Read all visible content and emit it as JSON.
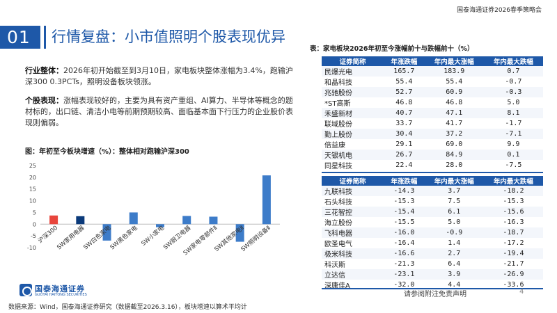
{
  "header": {
    "org": "国泰海通证券2026春季策略会"
  },
  "section": {
    "number": "01",
    "title": "行情复盘：小市值照明个股表现优异"
  },
  "text": {
    "industry_label": "行业整体：",
    "industry_body": "2026年初开始截至到3月10日，家电板块整体涨幅为3.4%，跑输沪深300 0.3PCTs，照明设备板块领涨。",
    "stock_label": "个股表现：",
    "stock_body": "涨幅表现较好的，主要为具有资产重组、AI算力、半导体等概念的题材标的，出口链、清洁小电等前期预期较高、面临基本面下行压力的企业股价表现则偏弱。"
  },
  "chart_data": {
    "type": "bar",
    "title": "图：年初至今板块增速（%）：整体相对跑输沪深300",
    "categories": [
      "沪深300",
      "SW家用电器",
      "SW白色家电",
      "SW黑色家电",
      "SW小家电",
      "SW厨卫电器",
      "SW家电零部件Ⅱ",
      "SW其他家电Ⅱ",
      "SW照明设备Ⅱ"
    ],
    "values": [
      3.7,
      3.4,
      -7.0,
      5.0,
      -1.3,
      3.5,
      3.2,
      -7.5,
      20.8
    ],
    "colors": [
      "#e8453c",
      "#0b3a7a",
      "#3d7cc9",
      "#3d7cc9",
      "#3d7cc9",
      "#3d7cc9",
      "#3d7cc9",
      "#3d7cc9",
      "#3d7cc9"
    ],
    "ylim": [
      -10,
      25
    ],
    "yticks": [
      -10,
      -5,
      0,
      5,
      10,
      15,
      20,
      25
    ],
    "xlabel": "",
    "ylabel": ""
  },
  "table": {
    "title": "表：家电板块2026年初至今涨幅前十与跌幅前十（%）",
    "headers": [
      "证券简称",
      "年涨跌幅",
      "年内最大涨幅",
      "年内最大跌幅"
    ],
    "top_rows": [
      [
        "民爆光电",
        "165.7",
        "183.9",
        "0.7"
      ],
      [
        "和晶科技",
        "55.4",
        "55.4",
        "-0.7"
      ],
      [
        "兆驰股份",
        "52.7",
        "60.9",
        "-0.3"
      ],
      [
        "*ST高斯",
        "46.8",
        "46.8",
        "5.0"
      ],
      [
        "禾盛新材",
        "40.7",
        "47.1",
        "8.1"
      ],
      [
        "联域股份",
        "33.7",
        "41.7",
        "-1.7"
      ],
      [
        "勤上股份",
        "30.4",
        "37.2",
        "-7.1"
      ],
      [
        "倍益康",
        "29.1",
        "69.0",
        "9.9"
      ],
      [
        "天银机电",
        "26.7",
        "84.9",
        "0.1"
      ],
      [
        "同星科技",
        "22.4",
        "28.0",
        "-7.5"
      ]
    ],
    "bottom_rows": [
      [
        "九联科技",
        "-14.3",
        "3.7",
        "-18.2"
      ],
      [
        "石头科技",
        "-15.3",
        "7.5",
        "-15.3"
      ],
      [
        "三花智控",
        "-15.4",
        "6.1",
        "-15.6"
      ],
      [
        "海立股份",
        "-15.5",
        "5.0",
        "-16.3"
      ],
      [
        "飞科电器",
        "-16.0",
        "-0.9",
        "-18.7"
      ],
      [
        "欧圣电气",
        "-16.4",
        "1.4",
        "-17.2"
      ],
      [
        "极米科技",
        "-16.6",
        "2.7",
        "-19.4"
      ],
      [
        "科沃斯",
        "-21.3",
        "6.4",
        "-21.7"
      ],
      [
        "立达信",
        "-23.1",
        "3.9",
        "-26.9"
      ],
      [
        "深康佳A",
        "-32.0",
        "4.4",
        "-33.6"
      ]
    ]
  },
  "footer": {
    "logo_name": "国泰海通证券",
    "logo_en": "GUOTAI HAITONG SECURITIES",
    "source": "数据来源：Wind，国泰海通证券研究（数据截至2026.3.16），板块增速以算术平均计",
    "disclaimer": "请参阅附注免责声明",
    "page": "4"
  }
}
